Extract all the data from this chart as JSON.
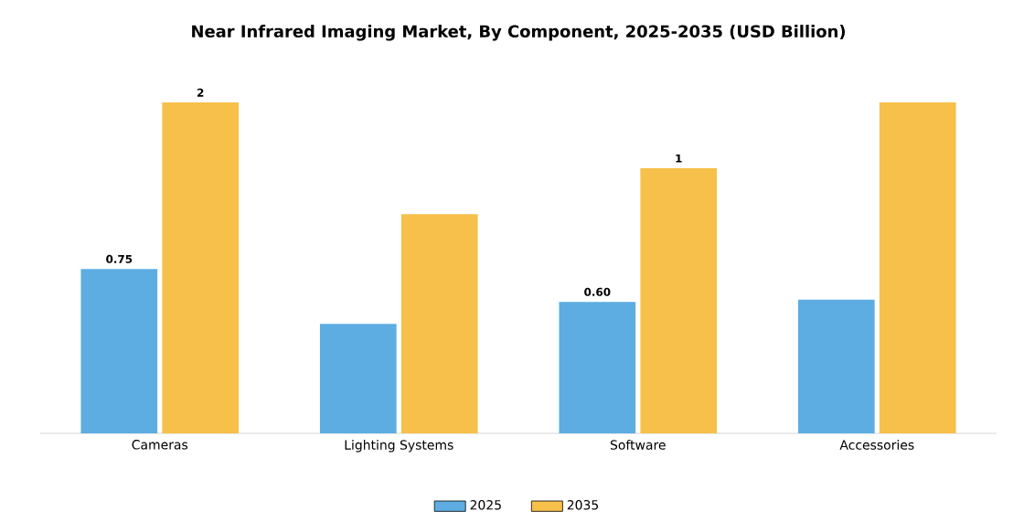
{
  "chart_data": {
    "type": "bar",
    "title": "Near Infrared Imaging Market, By Component, 2025-2035 (USD Billion)",
    "categories": [
      "Cameras",
      "Lighting Systems",
      "Software",
      "Accessories"
    ],
    "series": [
      {
        "name": "2025",
        "color": "#5dade2",
        "values": [
          0.75,
          0.5,
          0.6,
          0.61
        ],
        "value_labels": [
          "0.75",
          null,
          "0.60",
          null
        ]
      },
      {
        "name": "2035",
        "color": "#f7c04a",
        "values": [
          1.51,
          1.0,
          1.21,
          1.51
        ],
        "value_labels": [
          "2",
          null,
          "1",
          null
        ]
      }
    ],
    "legend": "bottom"
  }
}
